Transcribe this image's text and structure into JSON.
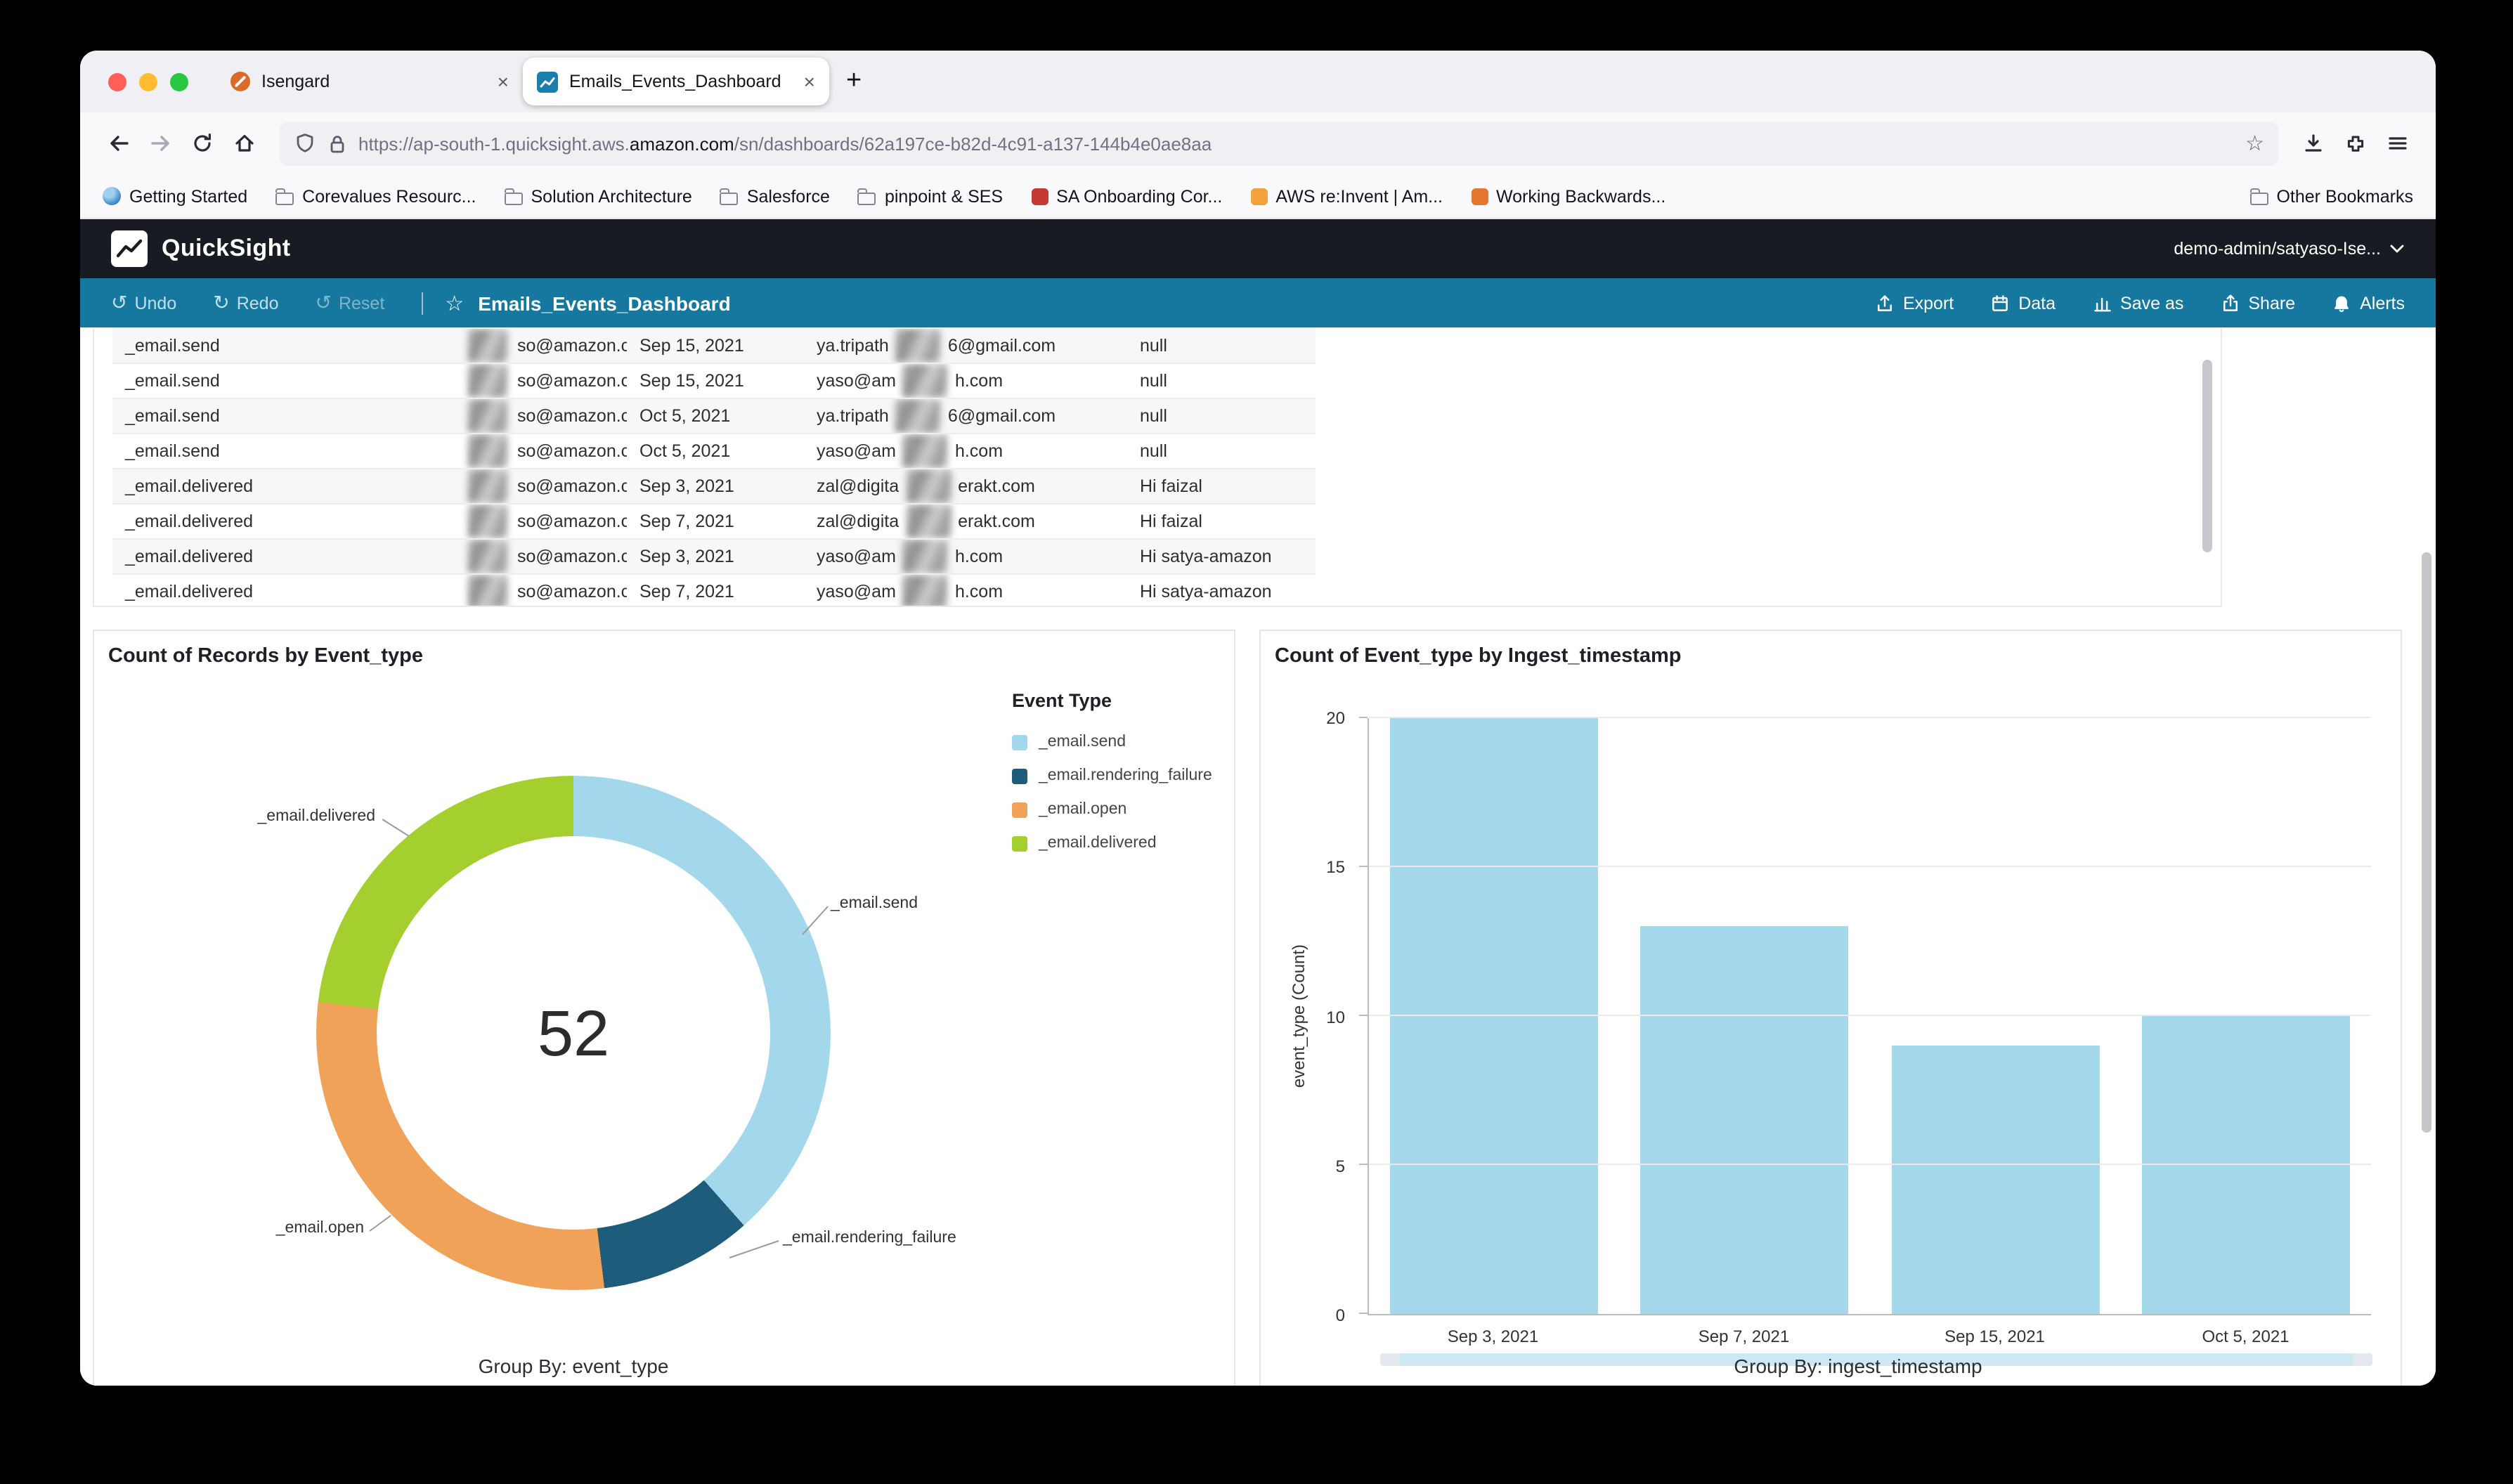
{
  "browser": {
    "tabs": [
      {
        "label": "Isengard"
      },
      {
        "label": "Emails_Events_Dashboard"
      }
    ],
    "new_tab": "+",
    "close_glyph": "×",
    "url": {
      "prefix": "https://ap-south-1.quicksight.aws.",
      "domain": "amazon.com",
      "path": "/sn/dashboards/62a197ce-b82d-4c91-a137-144b4e0ae8aa"
    },
    "bookmarks": [
      {
        "label": "Getting Started",
        "icon": "globe"
      },
      {
        "label": "Corevalues Resourc...",
        "icon": "folder"
      },
      {
        "label": "Solution Architecture",
        "icon": "folder"
      },
      {
        "label": "Salesforce",
        "icon": "folder"
      },
      {
        "label": "pinpoint & SES",
        "icon": "folder"
      },
      {
        "label": "SA Onboarding Cor...",
        "icon": "badge-red"
      },
      {
        "label": "AWS re:Invent | Am...",
        "icon": "badge-amber"
      },
      {
        "label": "Working Backwards...",
        "icon": "badge-orange"
      }
    ],
    "other_bookmarks": "Other Bookmarks"
  },
  "app": {
    "brand": "QuickSight",
    "account": "demo-admin/satyaso-Ise...",
    "toolbar": {
      "undo": "Undo",
      "redo": "Redo",
      "reset": "Reset",
      "undo_glyph": "↺",
      "redo_glyph": "↻",
      "reset_glyph": "↺",
      "star_glyph": "☆",
      "title": "Emails_Events_Dashboard",
      "actions": [
        {
          "label": "Export",
          "icon": "export"
        },
        {
          "label": "Data",
          "icon": "data"
        },
        {
          "label": "Save as",
          "icon": "save-as"
        },
        {
          "label": "Share",
          "icon": "share"
        },
        {
          "label": "Alerts",
          "icon": "bell"
        }
      ]
    }
  },
  "table": {
    "rows": [
      {
        "event_type": "_email.send",
        "from_suffix": "so@amazon.com",
        "date": "Sep 15, 2021",
        "to_prefix": "ya.tripath",
        "to_suffix": "6@gmail.com",
        "subject": "null"
      },
      {
        "event_type": "_email.send",
        "from_suffix": "so@amazon.com",
        "date": "Sep 15, 2021",
        "to_prefix": "yaso@am",
        "to_suffix": "h.com",
        "subject": "null"
      },
      {
        "event_type": "_email.send",
        "from_suffix": "so@amazon.com",
        "date": "Oct 5, 2021",
        "to_prefix": "ya.tripath",
        "to_suffix": "6@gmail.com",
        "subject": "null"
      },
      {
        "event_type": "_email.send",
        "from_suffix": "so@amazon.com",
        "date": "Oct 5, 2021",
        "to_prefix": "yaso@am",
        "to_suffix": "h.com",
        "subject": "null"
      },
      {
        "event_type": "_email.delivered",
        "from_suffix": "so@amazon.com",
        "date": "Sep 3, 2021",
        "to_prefix": "zal@digita",
        "to_suffix": "erakt.com",
        "subject": "Hi faizal"
      },
      {
        "event_type": "_email.delivered",
        "from_suffix": "so@amazon.com",
        "date": "Sep 7, 2021",
        "to_prefix": "zal@digita",
        "to_suffix": "erakt.com",
        "subject": "Hi faizal"
      },
      {
        "event_type": "_email.delivered",
        "from_suffix": "so@amazon.com",
        "date": "Sep 3, 2021",
        "to_prefix": "yaso@am",
        "to_suffix": "h.com",
        "subject": "Hi satya-amazon"
      },
      {
        "event_type": "_email.delivered",
        "from_suffix": "so@amazon.com",
        "date": "Sep 7, 2021",
        "to_prefix": "yaso@am",
        "to_suffix": "h.com",
        "subject": "Hi satya-amazon"
      }
    ]
  },
  "chart_data": [
    {
      "type": "pie",
      "title": "Count of Records by Event_type",
      "legend_title": "Event Type",
      "labels": [
        "_email.send",
        "_email.rendering_failure",
        "_email.open",
        "_email.delivered"
      ],
      "values": [
        20,
        5,
        15,
        12
      ],
      "colors": [
        "#a3d8ec",
        "#1d5d7b",
        "#f0a358",
        "#a4cf2e"
      ],
      "center_total": 52,
      "footer": "Group By: event_type",
      "legend_position": "right"
    },
    {
      "type": "bar",
      "title": "Count of Event_type by Ingest_timestamp",
      "categories": [
        "Sep 3, 2021",
        "Sep 7, 2021",
        "Sep 15, 2021",
        "Oct 5, 2021"
      ],
      "values": [
        20,
        13,
        9,
        10
      ],
      "ylabel": "event_type (Count)",
      "xlabel": "",
      "ylim": [
        0,
        20
      ],
      "yticks": [
        0,
        5,
        10,
        15,
        20
      ],
      "bar_color": "#a5d8eb",
      "grid": true,
      "footer": "Group By: ingest_timestamp"
    }
  ]
}
